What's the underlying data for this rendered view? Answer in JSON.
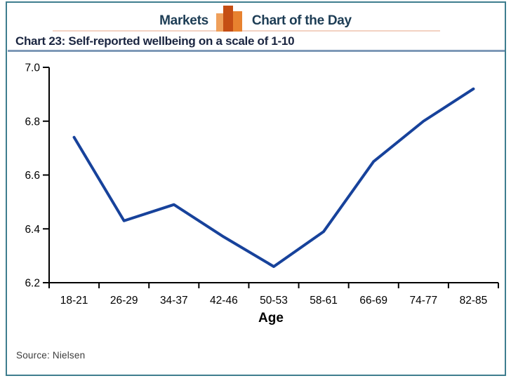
{
  "header": {
    "left_label": "Markets",
    "right_label": "Chart of the Day",
    "icon": "bar-chart-icon",
    "text_color": "#1d3d55",
    "accent_line_color": "#f3d2c2",
    "icon_bar_colors": [
      "#efa05b",
      "#c54e14",
      "#e8822f"
    ]
  },
  "frame_color": "#3e7d8e",
  "title": {
    "text": "Chart 23: Self-reported wellbeing on a scale of 1-10",
    "color": "#1a2540",
    "underline_color": "#7e99b7"
  },
  "chart_data": {
    "type": "line",
    "title": "Chart 23: Self-reported wellbeing on a scale of 1-10",
    "categories": [
      "18-21",
      "26-29",
      "34-37",
      "42-46",
      "50-53",
      "58-61",
      "66-69",
      "74-77",
      "82-85"
    ],
    "values": [
      6.74,
      6.43,
      6.49,
      6.37,
      6.26,
      6.39,
      6.65,
      6.8,
      6.92
    ],
    "series_name": "Self-reported wellbeing",
    "xlabel": "Age",
    "ylabel": "",
    "ylim": [
      6.2,
      7.0
    ],
    "yticks": [
      "7.0",
      "6.8",
      "6.6",
      "6.4",
      "6.2"
    ],
    "grid": false,
    "legend": "none",
    "line_color": "#17429b",
    "axis_color": "#000000"
  },
  "source": {
    "text": "Source: Nielsen"
  }
}
